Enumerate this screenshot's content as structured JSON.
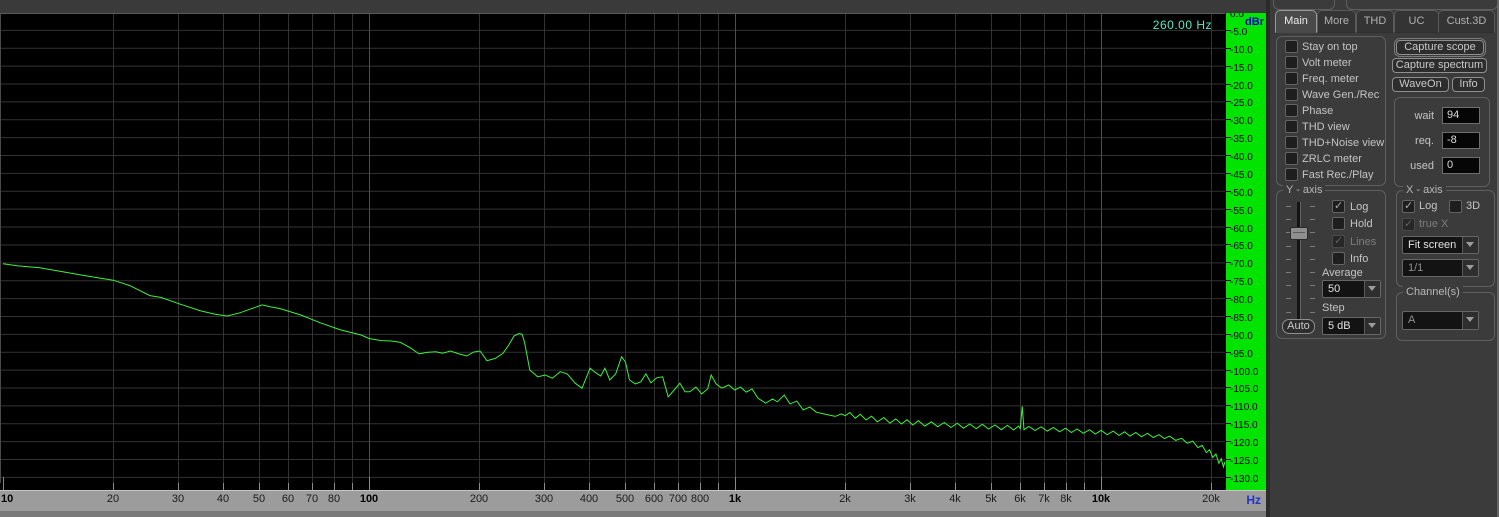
{
  "marker": {
    "readout": "260.00 Hz"
  },
  "plot": {
    "dbr_label": "dBr",
    "hz_label": "Hz",
    "db_ticks": [
      0,
      -5,
      -10,
      -15,
      -20,
      -25,
      -30,
      -35,
      -40,
      -45,
      -50,
      -55,
      -60,
      -65,
      -70,
      -75,
      -80,
      -85,
      -90,
      -95,
      -100,
      -105,
      -110,
      -115,
      -120,
      -125,
      -130
    ],
    "freq_ticks": [
      {
        "f": 10,
        "label": "10",
        "bold": true
      },
      {
        "f": 20,
        "label": "20"
      },
      {
        "f": 30,
        "label": "30"
      },
      {
        "f": 40,
        "label": "40"
      },
      {
        "f": 50,
        "label": "50"
      },
      {
        "f": 60,
        "label": "60"
      },
      {
        "f": 70,
        "label": "70"
      },
      {
        "f": 80,
        "label": "80"
      },
      {
        "f": 100,
        "label": "100",
        "bold": true
      },
      {
        "f": 200,
        "label": "200"
      },
      {
        "f": 300,
        "label": "300"
      },
      {
        "f": 400,
        "label": "400"
      },
      {
        "f": 500,
        "label": "500"
      },
      {
        "f": 600,
        "label": "600"
      },
      {
        "f": 700,
        "label": "700"
      },
      {
        "f": 800,
        "label": "800"
      },
      {
        "f": 1000,
        "label": "1k",
        "bold": true
      },
      {
        "f": 2000,
        "label": "2k"
      },
      {
        "f": 3000,
        "label": "3k"
      },
      {
        "f": 4000,
        "label": "4k"
      },
      {
        "f": 5000,
        "label": "5k"
      },
      {
        "f": 6000,
        "label": "6k"
      },
      {
        "f": 7000,
        "label": "7k"
      },
      {
        "f": 8000,
        "label": "8k"
      },
      {
        "f": 10000,
        "label": "10k",
        "bold": true
      },
      {
        "f": 20000,
        "label": "20k"
      }
    ],
    "grid_v_minor": [
      20,
      30,
      40,
      50,
      60,
      70,
      80,
      90,
      200,
      300,
      400,
      500,
      600,
      700,
      800,
      900,
      2000,
      3000,
      4000,
      5000,
      6000,
      7000,
      8000,
      9000,
      20000
    ],
    "grid_v_major": [
      100,
      1000,
      10000
    ],
    "colors": {
      "trace": "#3bf23b",
      "strip": "#00e400",
      "grid_minor": "#333333",
      "grid_major": "#4e4e4e",
      "tick": "#8a8a8a"
    }
  },
  "chart_data": {
    "type": "line",
    "title": "",
    "xlabel": "Hz",
    "ylabel": "dBr",
    "x_scale": "log",
    "xlim": [
      10,
      22050
    ],
    "ylim": [
      -130,
      0
    ],
    "y_tick_step": 5,
    "grid": true,
    "marker_readout": "260.00 Hz",
    "series": [
      {
        "name": "Channel A",
        "color": "#3bf23b",
        "points": [
          [
            10,
            -70.4
          ],
          [
            11,
            -71
          ],
          [
            12.6,
            -71.5
          ],
          [
            14.3,
            -72.5
          ],
          [
            16.2,
            -73.5
          ],
          [
            18.4,
            -74.4
          ],
          [
            20,
            -75
          ],
          [
            22.2,
            -76.5
          ],
          [
            25.2,
            -79.3
          ],
          [
            27,
            -79.8
          ],
          [
            30.5,
            -81.7
          ],
          [
            34.5,
            -83.5
          ],
          [
            38,
            -84.5
          ],
          [
            41,
            -85
          ],
          [
            44.5,
            -84.1
          ],
          [
            47.3,
            -83.1
          ],
          [
            51,
            -81.9
          ],
          [
            53.6,
            -82.4
          ],
          [
            57,
            -82.9
          ],
          [
            65,
            -84.7
          ],
          [
            73.6,
            -86.9
          ],
          [
            83.6,
            -88.9
          ],
          [
            95,
            -90.3
          ],
          [
            100,
            -91.3
          ],
          [
            108,
            -91.9
          ],
          [
            115,
            -92
          ],
          [
            122,
            -92.4
          ],
          [
            130,
            -94
          ],
          [
            137,
            -95.6
          ],
          [
            144,
            -95.2
          ],
          [
            152,
            -95
          ],
          [
            159,
            -95.4
          ],
          [
            167,
            -94.8
          ],
          [
            176,
            -95.6
          ],
          [
            185,
            -96.2
          ],
          [
            193,
            -95.1
          ],
          [
            201,
            -94.8
          ],
          [
            210,
            -97.5
          ],
          [
            221,
            -96.9
          ],
          [
            232,
            -95.5
          ],
          [
            241,
            -93.1
          ],
          [
            249,
            -90.6
          ],
          [
            257,
            -89.9
          ],
          [
            262,
            -90.1
          ],
          [
            266,
            -92.3
          ],
          [
            275,
            -100.1
          ],
          [
            289,
            -102
          ],
          [
            303,
            -101.5
          ],
          [
            317,
            -102.4
          ],
          [
            333,
            -100.6
          ],
          [
            348,
            -101.2
          ],
          [
            366,
            -103.8
          ],
          [
            382,
            -105.2
          ],
          [
            402,
            -99.6
          ],
          [
            414,
            -100.7
          ],
          [
            430,
            -101.8
          ],
          [
            441,
            -99.6
          ],
          [
            455,
            -102.9
          ],
          [
            472,
            -101.2
          ],
          [
            490,
            -96.4
          ],
          [
            502,
            -97.9
          ],
          [
            515,
            -102.9
          ],
          [
            534,
            -104
          ],
          [
            553,
            -103.4
          ],
          [
            571,
            -101.2
          ],
          [
            589,
            -103.7
          ],
          [
            611,
            -102.3
          ],
          [
            634,
            -102
          ],
          [
            657,
            -107.6
          ],
          [
            682,
            -105.7
          ],
          [
            707,
            -103.8
          ],
          [
            730,
            -106.2
          ],
          [
            753,
            -106.2
          ],
          [
            782,
            -104.9
          ],
          [
            811,
            -106.8
          ],
          [
            842,
            -105.4
          ],
          [
            861,
            -101.5
          ],
          [
            888,
            -104
          ],
          [
            921,
            -105.2
          ],
          [
            961,
            -104.3
          ],
          [
            998,
            -105.7
          ],
          [
            1035,
            -104.9
          ],
          [
            1073,
            -106.3
          ],
          [
            1113,
            -105.4
          ],
          [
            1155,
            -108
          ],
          [
            1213,
            -109.4
          ],
          [
            1266,
            -108.2
          ],
          [
            1306,
            -109
          ],
          [
            1363,
            -107.1
          ],
          [
            1413,
            -109.6
          ],
          [
            1475,
            -108.8
          ],
          [
            1536,
            -111.3
          ],
          [
            1601,
            -110.5
          ],
          [
            1668,
            -111.9
          ],
          [
            1734,
            -112.3
          ],
          [
            1804,
            -112.7
          ],
          [
            1880,
            -113.1
          ],
          [
            1950,
            -112.4
          ],
          [
            2000,
            -112.9
          ],
          [
            2060,
            -112
          ],
          [
            2130,
            -113.6
          ],
          [
            2200,
            -112.5
          ],
          [
            2280,
            -114.1
          ],
          [
            2360,
            -113
          ],
          [
            2450,
            -114.6
          ],
          [
            2550,
            -113.4
          ],
          [
            2650,
            -115
          ],
          [
            2750,
            -113.8
          ],
          [
            2850,
            -115.2
          ],
          [
            2950,
            -114
          ],
          [
            3060,
            -115.5
          ],
          [
            3170,
            -114.3
          ],
          [
            3300,
            -115.8
          ],
          [
            3440,
            -114.6
          ],
          [
            3580,
            -116
          ],
          [
            3730,
            -114.8
          ],
          [
            3890,
            -116.2
          ],
          [
            4050,
            -115
          ],
          [
            4210,
            -116.4
          ],
          [
            4380,
            -115.2
          ],
          [
            4560,
            -116.5
          ],
          [
            4740,
            -115.3
          ],
          [
            4930,
            -116.6
          ],
          [
            5130,
            -115.5
          ],
          [
            5340,
            -116.8
          ],
          [
            5550,
            -115.6
          ],
          [
            5770,
            -116.9
          ],
          [
            5950,
            -115.8
          ],
          [
            6020,
            -116.5
          ],
          [
            6090,
            -110.3
          ],
          [
            6160,
            -116.8
          ],
          [
            6350,
            -115.9
          ],
          [
            6600,
            -117
          ],
          [
            6860,
            -116
          ],
          [
            7130,
            -117.2
          ],
          [
            7410,
            -116.2
          ],
          [
            7700,
            -117.4
          ],
          [
            8000,
            -116.4
          ],
          [
            8300,
            -117.6
          ],
          [
            8600,
            -116.6
          ],
          [
            8950,
            -117.8
          ],
          [
            9300,
            -116.8
          ],
          [
            9650,
            -118
          ],
          [
            10000,
            -117
          ],
          [
            10400,
            -118.2
          ],
          [
            10800,
            -117.2
          ],
          [
            11200,
            -118.4
          ],
          [
            11600,
            -117.4
          ],
          [
            12000,
            -118.6
          ],
          [
            12450,
            -117.6
          ],
          [
            12900,
            -118.8
          ],
          [
            13400,
            -117.8
          ],
          [
            13900,
            -119
          ],
          [
            14400,
            -118.2
          ],
          [
            14900,
            -119.3
          ],
          [
            15400,
            -118.6
          ],
          [
            16000,
            -119.8
          ],
          [
            16600,
            -119.2
          ],
          [
            17200,
            -120.6
          ],
          [
            17800,
            -120
          ],
          [
            18400,
            -121.8
          ],
          [
            18900,
            -121.2
          ],
          [
            19400,
            -123.2
          ],
          [
            19800,
            -122.4
          ],
          [
            20200,
            -124.6
          ],
          [
            20600,
            -123.6
          ],
          [
            21000,
            -126.2
          ],
          [
            21300,
            -124.9
          ],
          [
            21600,
            -127.2
          ],
          [
            21800,
            -125.8
          ],
          [
            22000,
            -127.8
          ]
        ]
      }
    ]
  },
  "panel": {
    "tabs": [
      {
        "label": "Main",
        "active": true
      },
      {
        "label": "More",
        "active": false
      },
      {
        "label": "THD",
        "active": false
      },
      {
        "label": "UC",
        "active": false
      },
      {
        "label": "Cust.3D",
        "active": false
      }
    ],
    "options": [
      "Stay on top",
      "Volt meter",
      "Freq. meter",
      "Wave Gen./Rec",
      "Phase",
      "THD view",
      "THD+Noise view",
      "ZRLC meter",
      "Fast Rec./Play"
    ],
    "buttons": {
      "capture_scope": "Capture scope",
      "capture_spectrum": "Capture spectrum",
      "wave_on": "WaveOn",
      "info": "Info",
      "auto": "Auto"
    },
    "counters": {
      "wait_label": "wait",
      "wait": "94",
      "req_label": "req.",
      "req": "-8",
      "used_label": "used",
      "used": "0"
    },
    "y_axis": {
      "title": "Y - axis",
      "checks": [
        {
          "label": "Log",
          "checked": true,
          "disabled": false
        },
        {
          "label": "Hold",
          "checked": false,
          "disabled": false
        },
        {
          "label": "Lines",
          "checked": true,
          "disabled": true
        },
        {
          "label": "Info",
          "checked": false,
          "disabled": false
        }
      ],
      "average_label": "Average",
      "average_value": "50",
      "step_label": "Step",
      "step_value": "5 dB"
    },
    "x_axis": {
      "title": "X - axis",
      "log_label": "Log",
      "threed_label": "3D",
      "truex_label": "true X",
      "fit_value": "Fit screen",
      "ratio_value": "1/1"
    },
    "channel": {
      "title": "Channel(s)",
      "value": "A"
    }
  }
}
